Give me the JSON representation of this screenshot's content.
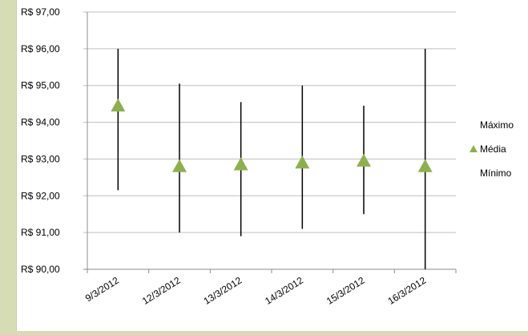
{
  "chart_data": {
    "type": "stock-hlc",
    "categories": [
      "9/3/2012",
      "12/3/2012",
      "13/3/2012",
      "14/3/2012",
      "15/3/2012",
      "16/3/2012"
    ],
    "series": [
      {
        "name": "Máximo",
        "values": [
          96.0,
          95.05,
          94.55,
          95.0,
          94.45,
          96.0
        ]
      },
      {
        "name": "Média",
        "values": [
          94.45,
          92.8,
          92.85,
          92.9,
          92.95,
          92.8
        ]
      },
      {
        "name": "Mínimo",
        "values": [
          92.15,
          91.0,
          90.9,
          91.1,
          91.5,
          90.0
        ]
      }
    ],
    "y_ticks": [
      "R$ 90,00",
      "R$ 91,00",
      "R$ 92,00",
      "R$ 93,00",
      "R$ 94,00",
      "R$ 95,00",
      "R$ 96,00",
      "R$ 97,00"
    ],
    "ylim": [
      90,
      97
    ],
    "grid": true,
    "legend": [
      "Máximo",
      "Média",
      "Mínimo"
    ],
    "legend_position": "right",
    "colors": {
      "marker": "#8db04f",
      "line": "#000000",
      "grid": "#bfbfbf",
      "axis": "#8c8c8c"
    }
  }
}
